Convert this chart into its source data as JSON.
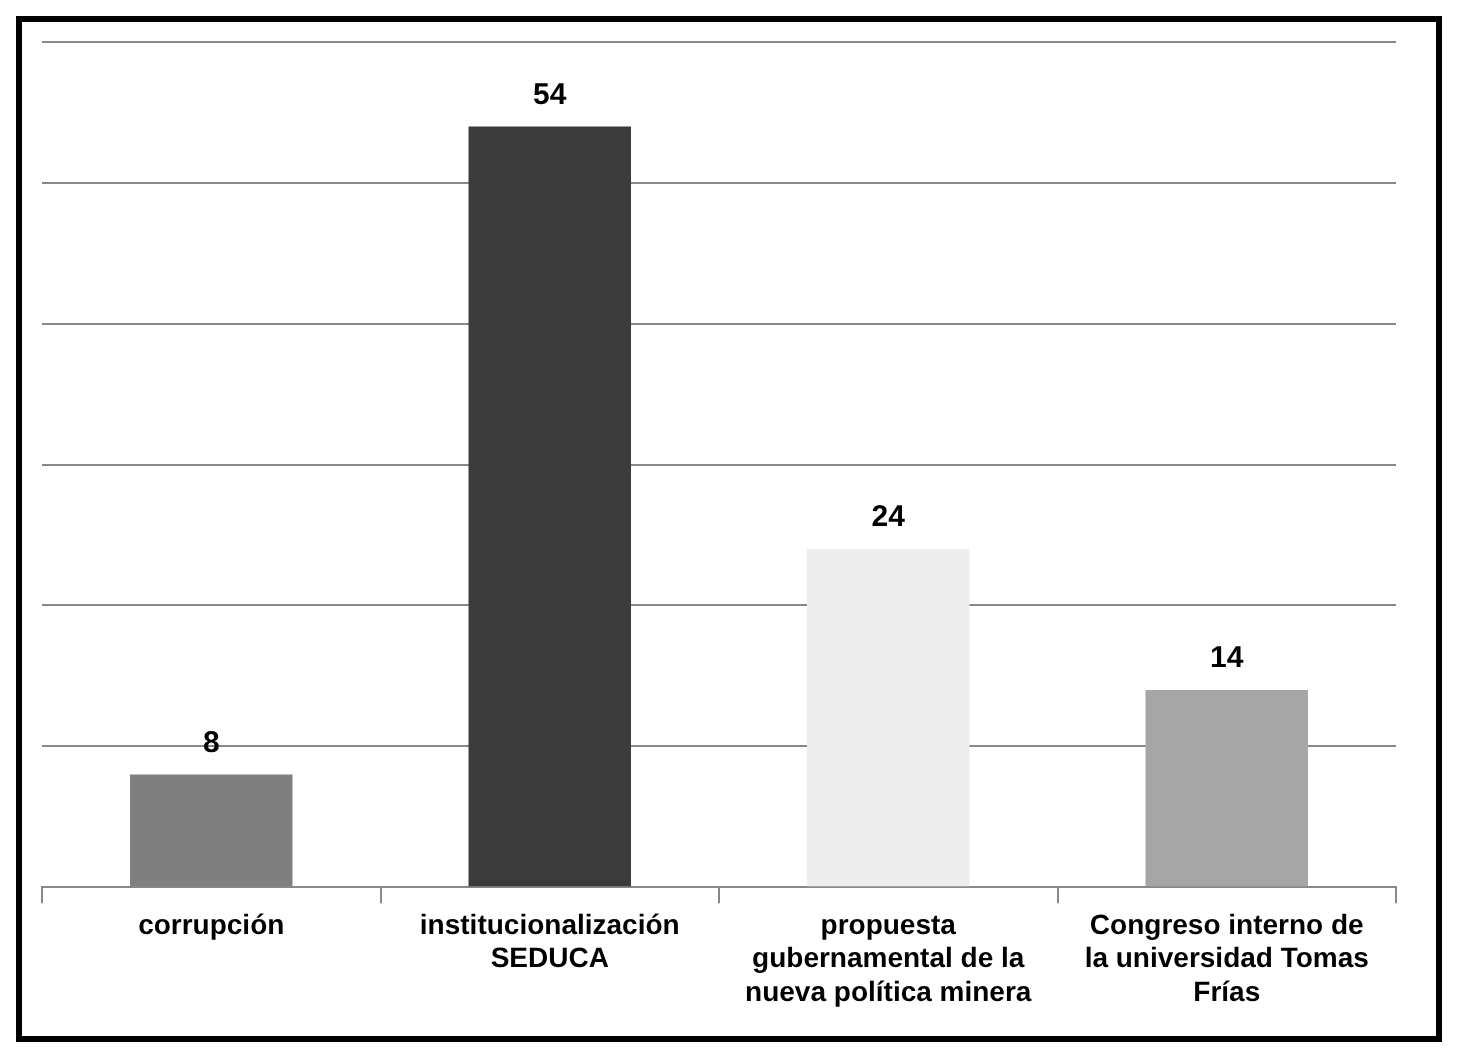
{
  "chart_data": {
    "type": "bar",
    "categories": [
      "corrupción",
      "institucionalización SEDUCA",
      "propuesta gubernamental de la nueva política minera",
      "Congreso interno de la universidad Tomas Frías"
    ],
    "values": [
      8,
      54,
      24,
      14
    ],
    "colors": [
      "#7f7f7f",
      "#3b3b3b",
      "#ededed",
      "#a6a6a6"
    ],
    "ylim": [
      0,
      60
    ],
    "yticks": [
      {
        "value": 0,
        "label": null
      },
      {
        "value": 10,
        "label": null
      },
      {
        "value": 20,
        "label": null
      },
      {
        "value": 30,
        "label": null
      },
      {
        "value": 40,
        "label": null
      },
      {
        "value": 50,
        "label": null
      },
      {
        "value": 60,
        "label": null
      }
    ],
    "grid": "y",
    "tick_labels": "x",
    "data_labels": true,
    "legend": false
  }
}
